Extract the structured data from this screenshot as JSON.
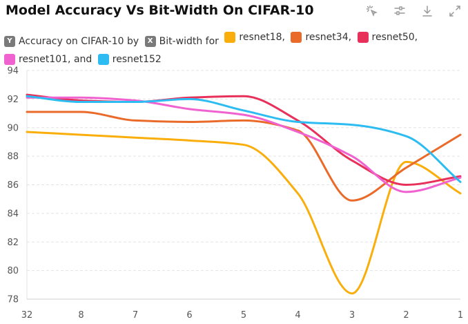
{
  "title": "Model Accuracy Vs Bit-Width On CIFAR-10",
  "toolbar": {
    "icons": [
      "select-icon",
      "adjust-icon",
      "download-icon",
      "expand-icon"
    ]
  },
  "legend": {
    "y_badge": "Y",
    "y_text": "Accuracy on CIFAR-10 by",
    "x_badge": "X",
    "x_text": "Bit-width for",
    "items": [
      {
        "label": "resnet18,",
        "color": "#F9AE0B"
      },
      {
        "label": "resnet34,",
        "color": "#EA6A2A"
      },
      {
        "label": "resnet50,",
        "color": "#E8315A"
      },
      {
        "label": "resnet101, and",
        "color": "#F062D0"
      },
      {
        "label": "resnet152",
        "color": "#2DBCF2"
      }
    ]
  },
  "chart_data": {
    "type": "line",
    "title": "Model Accuracy Vs Bit-Width On CIFAR-10",
    "x": [
      "32",
      "8",
      "7",
      "6",
      "5",
      "4",
      "3",
      "2",
      "1"
    ],
    "ylim": [
      78,
      94
    ],
    "yticks": [
      78,
      80,
      82,
      84,
      86,
      88,
      90,
      92,
      94
    ],
    "grid": true,
    "legend_position": "top-left",
    "series": [
      {
        "name": "resnet18",
        "color": "#F9AE0B",
        "values": [
          89.7,
          89.5,
          89.3,
          89.1,
          88.8,
          85.4,
          78.4,
          87.6,
          85.4
        ]
      },
      {
        "name": "resnet34",
        "color": "#EA6A2A",
        "values": [
          91.1,
          91.1,
          90.5,
          90.4,
          90.5,
          89.8,
          84.9,
          87.2,
          89.5
        ]
      },
      {
        "name": "resnet50",
        "color": "#E8315A",
        "values": [
          92.3,
          91.9,
          91.8,
          92.1,
          92.2,
          90.5,
          87.7,
          86.0,
          86.6
        ]
      },
      {
        "name": "resnet101",
        "color": "#F062D0",
        "values": [
          92.1,
          92.1,
          91.9,
          91.3,
          90.9,
          89.7,
          88.0,
          85.5,
          86.5
        ]
      },
      {
        "name": "resnet152",
        "color": "#2DBCF2",
        "values": [
          92.2,
          91.8,
          91.8,
          92.0,
          91.2,
          90.4,
          90.2,
          89.4,
          86.2
        ]
      }
    ]
  }
}
